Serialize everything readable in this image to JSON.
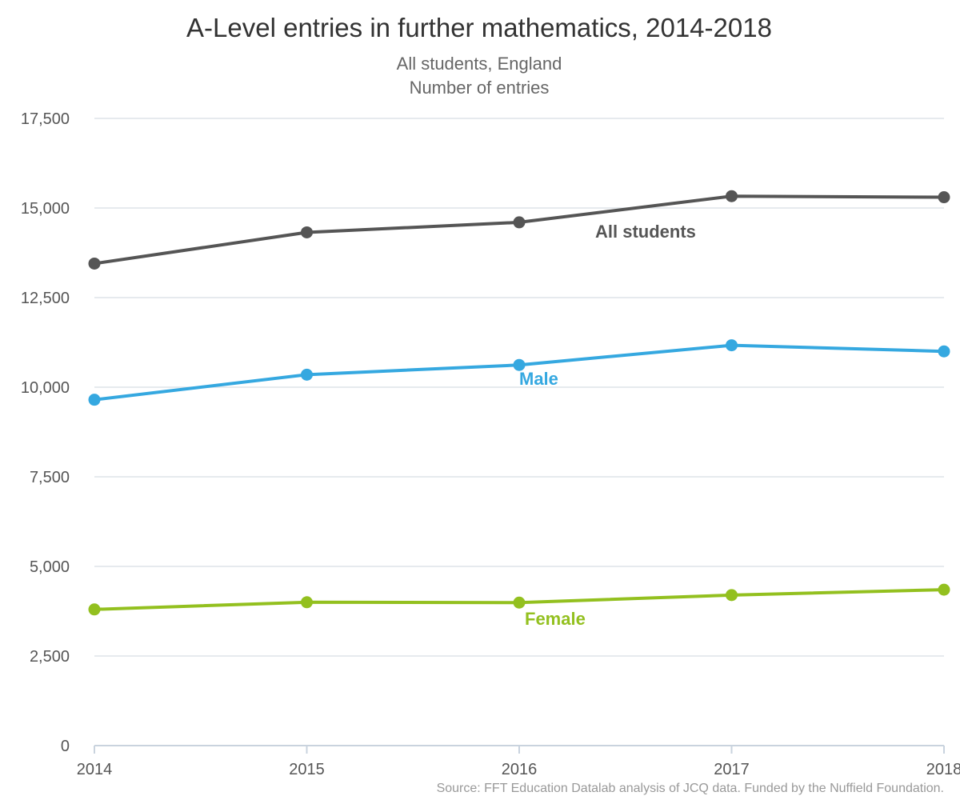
{
  "chart_data": {
    "type": "line",
    "title": "A-Level entries in further mathematics, 2014-2018",
    "subtitle_lines": [
      "All students, England",
      "Number of entries"
    ],
    "categories": [
      "2014",
      "2015",
      "2016",
      "2017",
      "2018"
    ],
    "ylim": [
      0,
      17500
    ],
    "yticks": [
      {
        "value": 0,
        "label": "0"
      },
      {
        "value": 2500,
        "label": "2,500"
      },
      {
        "value": 5000,
        "label": "5,000"
      },
      {
        "value": 7500,
        "label": "7,500"
      },
      {
        "value": 10000,
        "label": "10,000"
      },
      {
        "value": 12500,
        "label": "12,500"
      },
      {
        "value": 15000,
        "label": "15,000"
      },
      {
        "value": 17500,
        "label": "17,500"
      }
    ],
    "grid": true,
    "series": [
      {
        "key": "all",
        "name": "All students",
        "color": "#555555",
        "values": [
          13450,
          14320,
          14600,
          15330,
          15300
        ]
      },
      {
        "key": "male",
        "name": "Male",
        "color": "#35a8e0",
        "values": [
          9650,
          10350,
          10620,
          11170,
          11000
        ]
      },
      {
        "key": "female",
        "name": "Female",
        "color": "#93c01f",
        "values": [
          3800,
          4000,
          3990,
          4200,
          4350
        ]
      }
    ],
    "source": "Source: FFT Education Datalab analysis of JCQ data. Funded by the Nuffield Foundation."
  }
}
